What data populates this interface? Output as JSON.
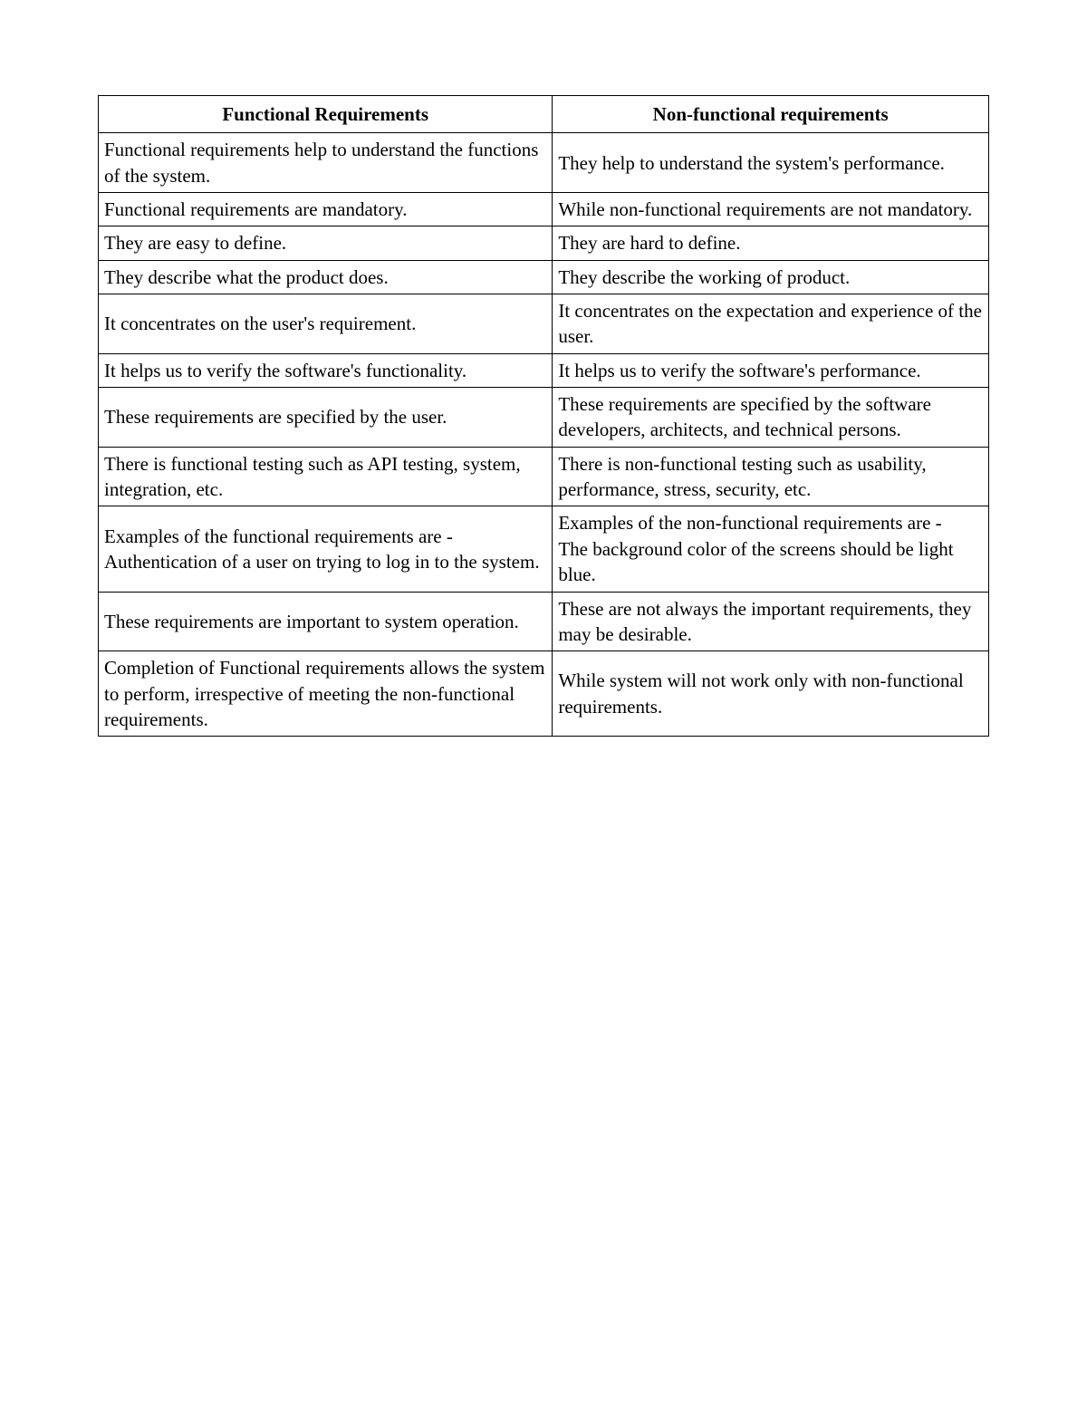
{
  "table": {
    "type": "table",
    "columns": [
      "Functional Requirements",
      "Non-functional requirements"
    ],
    "column_widths": [
      "51%",
      "49%"
    ],
    "border_color": "#000000",
    "background_color": "#ffffff",
    "text_color": "#000000",
    "header_fontweight": "bold",
    "header_align": "center",
    "body_align": "left",
    "fontsize": 21,
    "font_family": "Times New Roman",
    "rows": [
      [
        "Functional requirements help to understand the functions of the system.",
        "They help to understand the system's performance."
      ],
      [
        "Functional requirements are mandatory.",
        "While non-functional requirements are not mandatory."
      ],
      [
        "They are easy to define.",
        "They are hard to define."
      ],
      [
        "They describe what the product does.",
        "They describe the working of product."
      ],
      [
        "It concentrates on the user's requirement.",
        "It concentrates on the expectation and experience of the user."
      ],
      [
        "It helps us to verify the software's functionality.",
        "It helps us to verify the software's performance."
      ],
      [
        "These requirements are specified by the user.",
        "These requirements are specified by the software developers, architects, and technical persons."
      ],
      [
        "There is functional testing such as API testing, system, integration, etc.",
        "There is non-functional testing such as usability, performance, stress, security, etc."
      ],
      [
        "Examples of the functional requirements are -\nAuthentication of a user on trying to log in to the system.",
        "Examples of the non-functional requirements are -\nThe background color of the screens should be light blue."
      ],
      [
        "These requirements are important to system operation.",
        "These are not always the important requirements, they may be desirable."
      ],
      [
        "Completion of Functional requirements allows the system to perform, irrespective of meeting the non-functional requirements.",
        "While system will not work only with non-functional requirements."
      ]
    ]
  }
}
